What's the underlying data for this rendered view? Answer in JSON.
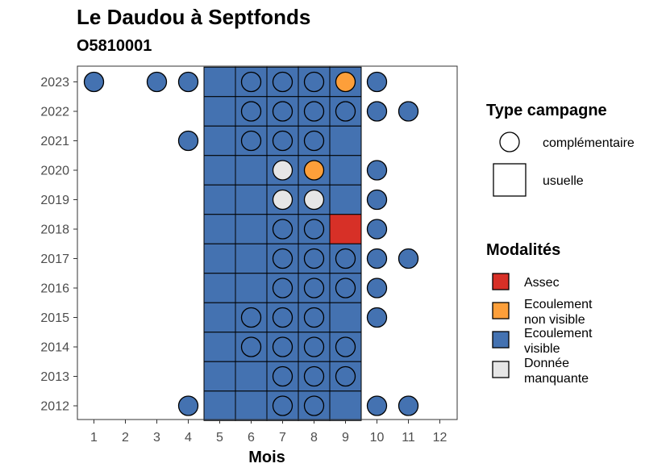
{
  "title": "Le Daudou à Septfonds",
  "subtitle": "O5810001",
  "chart_data": {
    "type": "heatmap",
    "title": "Le Daudou à Septfonds",
    "subtitle": "O5810001",
    "xlabel": "Mois",
    "ylabel": "",
    "x_ticks": [
      "1",
      "2",
      "3",
      "4",
      "5",
      "6",
      "7",
      "8",
      "9",
      "10",
      "11",
      "12"
    ],
    "y_ticks": [
      "2012",
      "2013",
      "2014",
      "2015",
      "2016",
      "2017",
      "2018",
      "2019",
      "2020",
      "2021",
      "2022",
      "2023"
    ],
    "colors": {
      "Assec": "#d73027",
      "Ecoulement non visible": "#fd9f3a",
      "Ecoulement visible": "#4472b1",
      "Donnée manquante": "#e6e6e6"
    },
    "usuelle": [
      {
        "year": 2023,
        "months": [
          5,
          6,
          7,
          8,
          9
        ],
        "values": [
          "visible",
          "visible",
          "visible",
          "visible",
          "visible"
        ]
      },
      {
        "year": 2022,
        "months": [
          5,
          6,
          7,
          8,
          9
        ],
        "values": [
          "visible",
          "visible",
          "visible",
          "visible",
          "visible"
        ]
      },
      {
        "year": 2021,
        "months": [
          5,
          6,
          7,
          8,
          9
        ],
        "values": [
          "visible",
          "visible",
          "visible",
          "visible",
          "visible"
        ]
      },
      {
        "year": 2020,
        "months": [
          5,
          6,
          7,
          8,
          9
        ],
        "values": [
          "visible",
          "visible",
          "visible",
          "visible",
          "visible"
        ]
      },
      {
        "year": 2019,
        "months": [
          5,
          6,
          7,
          8,
          9
        ],
        "values": [
          "visible",
          "visible",
          "visible",
          "visible",
          "visible"
        ]
      },
      {
        "year": 2018,
        "months": [
          5,
          6,
          7,
          8,
          9
        ],
        "values": [
          "visible",
          "visible",
          "visible",
          "visible",
          "assec"
        ]
      },
      {
        "year": 2017,
        "months": [
          5,
          6,
          7,
          8,
          9
        ],
        "values": [
          "visible",
          "visible",
          "visible",
          "visible",
          "visible"
        ]
      },
      {
        "year": 2016,
        "months": [
          5,
          6,
          7,
          8,
          9
        ],
        "values": [
          "visible",
          "visible",
          "visible",
          "visible",
          "visible"
        ]
      },
      {
        "year": 2015,
        "months": [
          5,
          6,
          7,
          8,
          9
        ],
        "values": [
          "visible",
          "visible",
          "visible",
          "visible",
          "visible"
        ]
      },
      {
        "year": 2014,
        "months": [
          5,
          6,
          7,
          8,
          9
        ],
        "values": [
          "visible",
          "visible",
          "visible",
          "visible",
          "visible"
        ]
      },
      {
        "year": 2013,
        "months": [
          5,
          6,
          7,
          8,
          9
        ],
        "values": [
          "visible",
          "visible",
          "visible",
          "visible",
          "visible"
        ]
      },
      {
        "year": 2012,
        "months": [
          5,
          6,
          7,
          8,
          9
        ],
        "values": [
          "visible",
          "visible",
          "visible",
          "visible",
          "visible"
        ]
      }
    ],
    "complementaire": [
      {
        "year": 2023,
        "points": [
          [
            1,
            "visible"
          ],
          [
            3,
            "visible"
          ],
          [
            4,
            "visible"
          ],
          [
            6,
            "visible"
          ],
          [
            7,
            "visible"
          ],
          [
            8,
            "visible"
          ],
          [
            9,
            "non_visible"
          ],
          [
            10,
            "visible"
          ]
        ]
      },
      {
        "year": 2022,
        "points": [
          [
            6,
            "visible"
          ],
          [
            7,
            "visible"
          ],
          [
            8,
            "visible"
          ],
          [
            9,
            "visible"
          ],
          [
            10,
            "visible"
          ],
          [
            11,
            "visible"
          ]
        ]
      },
      {
        "year": 2021,
        "points": [
          [
            4,
            "visible"
          ],
          [
            6,
            "visible"
          ],
          [
            7,
            "visible"
          ],
          [
            8,
            "visible"
          ]
        ]
      },
      {
        "year": 2020,
        "points": [
          [
            7,
            "manquante"
          ],
          [
            8,
            "non_visible"
          ],
          [
            10,
            "visible"
          ]
        ]
      },
      {
        "year": 2019,
        "points": [
          [
            7,
            "manquante"
          ],
          [
            8,
            "manquante"
          ],
          [
            10,
            "visible"
          ]
        ]
      },
      {
        "year": 2018,
        "points": [
          [
            7,
            "visible"
          ],
          [
            8,
            "visible"
          ],
          [
            10,
            "visible"
          ]
        ]
      },
      {
        "year": 2017,
        "points": [
          [
            7,
            "visible"
          ],
          [
            8,
            "visible"
          ],
          [
            9,
            "visible"
          ],
          [
            10,
            "visible"
          ],
          [
            11,
            "visible"
          ]
        ]
      },
      {
        "year": 2016,
        "points": [
          [
            7,
            "visible"
          ],
          [
            8,
            "visible"
          ],
          [
            9,
            "visible"
          ],
          [
            10,
            "visible"
          ]
        ]
      },
      {
        "year": 2015,
        "points": [
          [
            6,
            "visible"
          ],
          [
            7,
            "visible"
          ],
          [
            8,
            "visible"
          ],
          [
            10,
            "visible"
          ]
        ]
      },
      {
        "year": 2014,
        "points": [
          [
            6,
            "visible"
          ],
          [
            7,
            "visible"
          ],
          [
            8,
            "visible"
          ],
          [
            9,
            "visible"
          ]
        ]
      },
      {
        "year": 2013,
        "points": [
          [
            7,
            "visible"
          ],
          [
            8,
            "visible"
          ],
          [
            9,
            "visible"
          ]
        ]
      },
      {
        "year": 2012,
        "points": [
          [
            4,
            "visible"
          ],
          [
            7,
            "visible"
          ],
          [
            8,
            "visible"
          ],
          [
            10,
            "visible"
          ],
          [
            11,
            "visible"
          ]
        ]
      }
    ],
    "legend": {
      "type_title": "Type campagne",
      "type_items": [
        "complémentaire",
        "usuelle"
      ],
      "mod_title": "Modalités",
      "mod_items": [
        {
          "key": "assec",
          "lines": [
            "Assec"
          ],
          "color": "#d73027"
        },
        {
          "key": "non_visible",
          "lines": [
            "Ecoulement",
            "non visible"
          ],
          "color": "#fd9f3a"
        },
        {
          "key": "visible",
          "lines": [
            "Ecoulement",
            "visible"
          ],
          "color": "#4472b1"
        },
        {
          "key": "manquante",
          "lines": [
            "Donnée",
            "manquante"
          ],
          "color": "#e6e6e6"
        }
      ]
    }
  }
}
